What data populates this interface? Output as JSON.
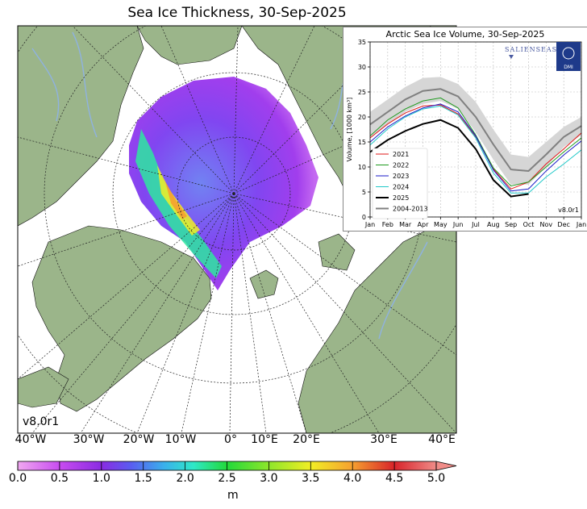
{
  "title": "Sea Ice Thickness, 30-Sep-2025",
  "map": {
    "version_label": "v8.0r1",
    "longitude_labels": [
      "40°W",
      "30°W",
      "20°W",
      "10°W",
      "0°",
      "10°E",
      "20°E",
      "30°E",
      "40°E"
    ],
    "colors": {
      "land": "#9bb58a",
      "ocean": "#ffffff",
      "rivers": "#8fb2e0"
    }
  },
  "colorbar": {
    "ticks": [
      "0.0",
      "0.5",
      "1.0",
      "1.5",
      "2.0",
      "2.5",
      "3.0",
      "3.5",
      "4.0",
      "4.5",
      "5.0"
    ],
    "unit": "m",
    "colors": [
      "#f0a8f0",
      "#c84cf0",
      "#8a2be2",
      "#6a3cf0",
      "#4a7cf0",
      "#3ac8e8",
      "#2ee89c",
      "#22d93a",
      "#9ee62a",
      "#f2ee24",
      "#f6b030",
      "#ea5a24",
      "#d8232a",
      "#f08c88"
    ]
  },
  "chart_data": {
    "type": "line",
    "title": "Arctic Sea Ice Volume, 30-Sep-2025",
    "ylabel": "Volume, [1000 km³]",
    "xlabel": "",
    "ylim": [
      0,
      35
    ],
    "yticks": [
      0,
      5,
      10,
      15,
      20,
      25,
      30,
      35
    ],
    "categories": [
      "Jan",
      "Feb",
      "Mar",
      "Apr",
      "May",
      "Jun",
      "Jul",
      "Aug",
      "Sep",
      "Oct",
      "Nov",
      "Dec",
      "Jan"
    ],
    "grid": true,
    "legend_position": "lower-left",
    "logo_text": "SALIENSEAS",
    "logo_badge": "DMI",
    "version_label": "v8.0r1",
    "band": {
      "upper": [
        21.0,
        23.5,
        26.0,
        27.8,
        28.0,
        26.6,
        23.0,
        17.5,
        12.5,
        12.0,
        15.0,
        18.0,
        20.0
      ],
      "lower": [
        16.0,
        18.5,
        21.0,
        22.6,
        23.2,
        21.6,
        17.0,
        11.5,
        6.5,
        6.5,
        10.0,
        14.0,
        16.4
      ]
    },
    "series": [
      {
        "name": "2021",
        "color": "#e01818",
        "values": [
          15.8,
          18.6,
          20.8,
          22.2,
          22.4,
          20.6,
          16.0,
          9.6,
          5.6,
          7.0,
          10.6,
          13.6,
          16.8
        ]
      },
      {
        "name": "2022",
        "color": "#1e9a1e",
        "values": [
          16.2,
          19.4,
          21.6,
          23.2,
          23.8,
          21.8,
          16.4,
          9.8,
          6.2,
          7.0,
          10.0,
          13.0,
          15.8
        ]
      },
      {
        "name": "2023",
        "color": "#1a1ac8",
        "values": [
          15.0,
          18.0,
          20.2,
          21.8,
          22.6,
          21.0,
          16.2,
          9.4,
          5.2,
          5.6,
          9.2,
          12.4,
          15.2
        ]
      },
      {
        "name": "2024",
        "color": "#1ec8c8",
        "values": [
          14.4,
          17.6,
          20.0,
          21.6,
          22.2,
          20.4,
          15.8,
          8.8,
          4.8,
          4.8,
          8.0,
          10.6,
          13.4
        ]
      },
      {
        "name": "2025",
        "color": "#000000",
        "values": [
          13.0,
          15.4,
          17.2,
          18.6,
          19.4,
          17.8,
          13.6,
          7.4,
          4.1,
          4.6,
          null,
          null,
          null
        ]
      },
      {
        "name": "2004-2013",
        "color": "#808080",
        "values": [
          18.5,
          21.0,
          23.5,
          25.2,
          25.6,
          24.1,
          20.0,
          14.5,
          9.5,
          9.2,
          12.5,
          16.0,
          18.2
        ]
      }
    ]
  }
}
